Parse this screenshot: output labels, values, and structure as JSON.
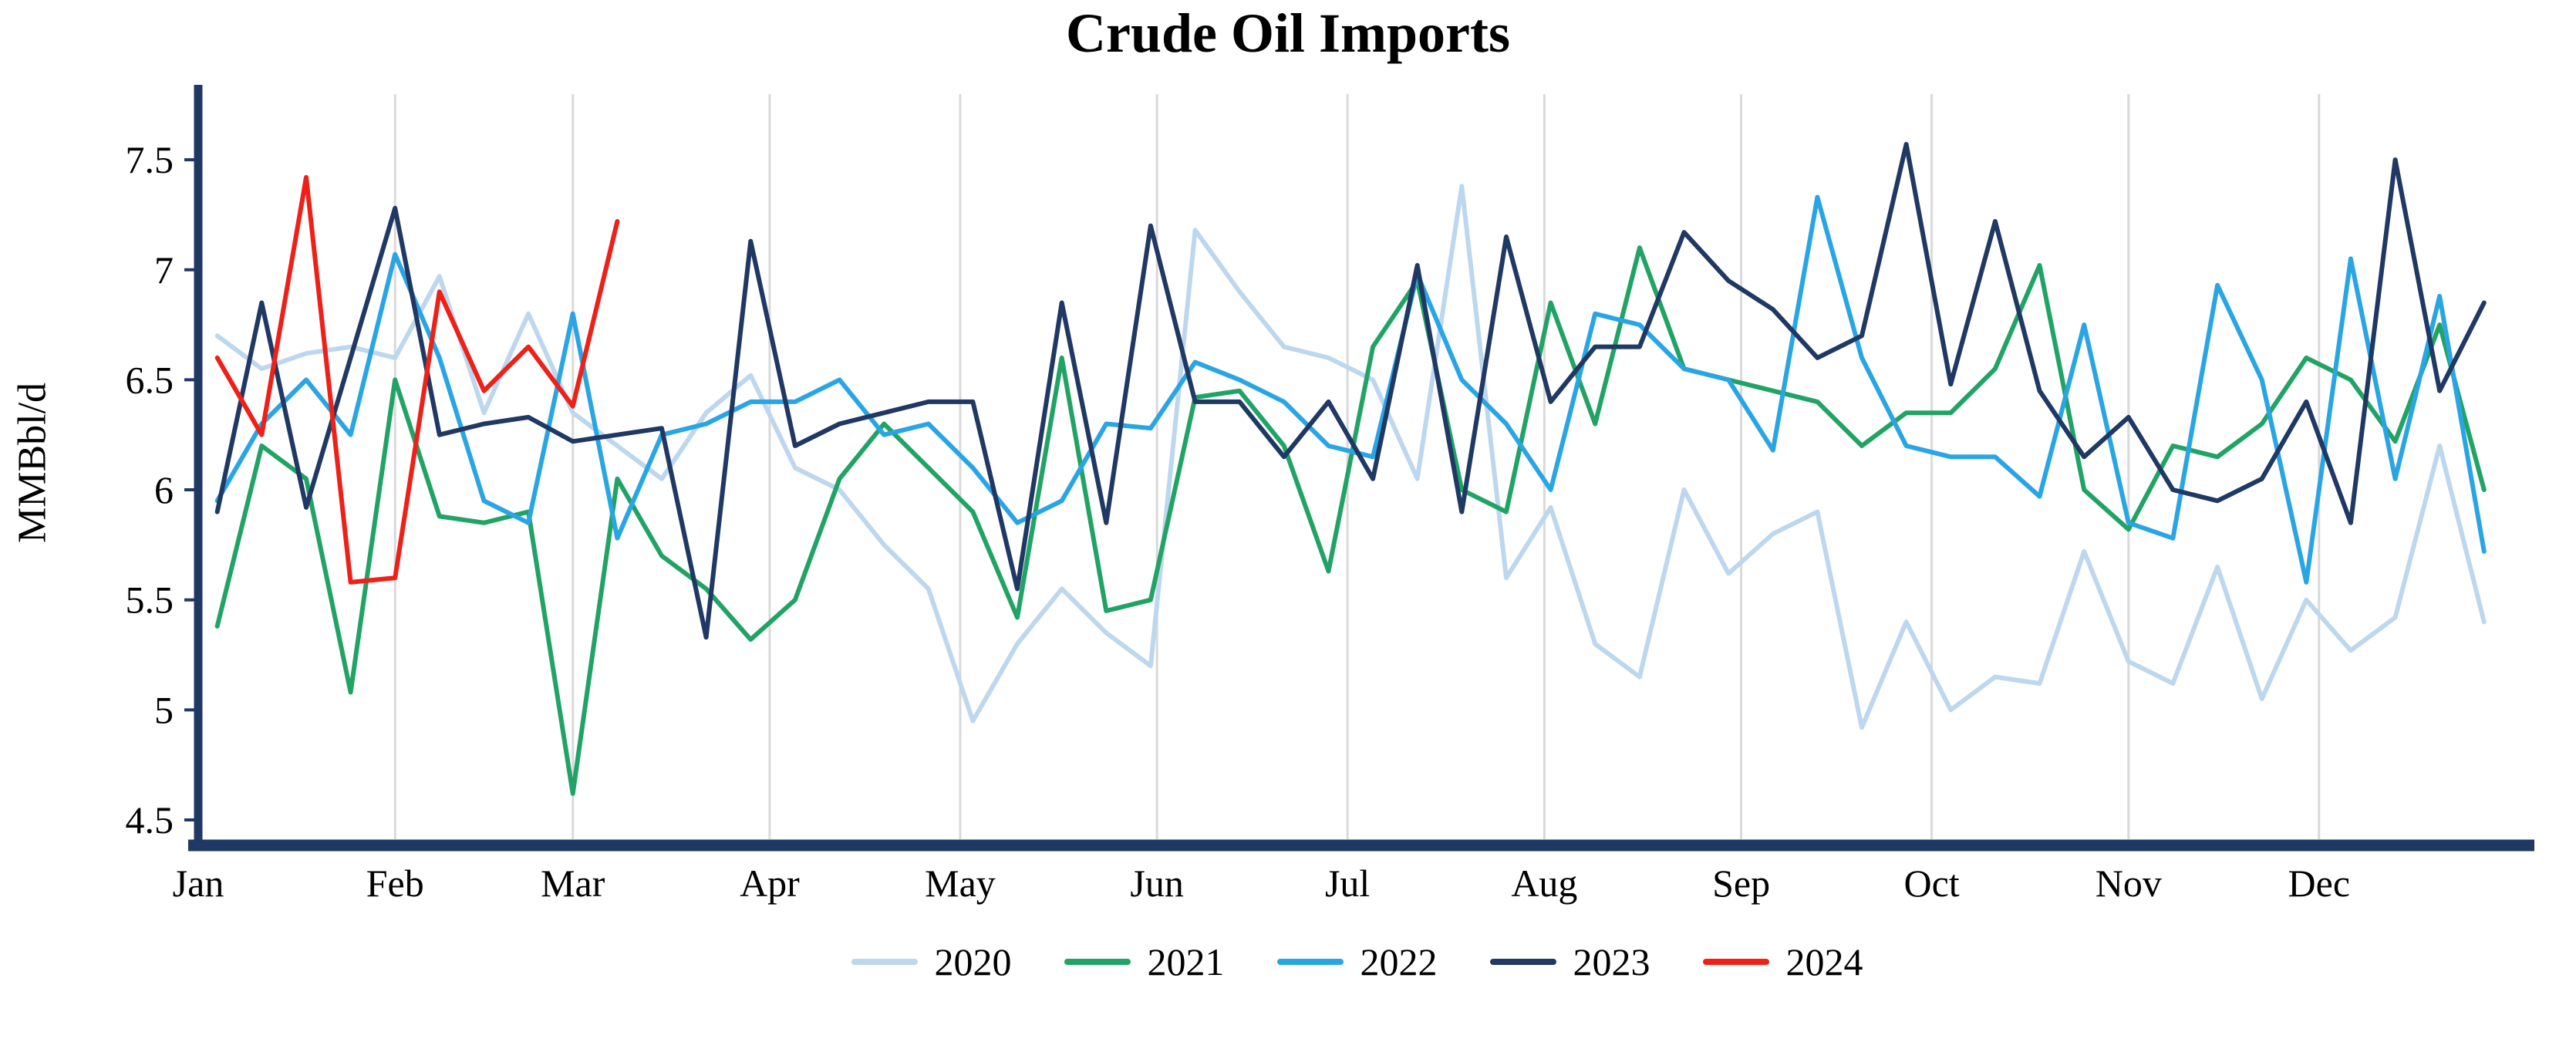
{
  "chart_data": {
    "type": "line",
    "title": "Crude Oil Imports",
    "ylabel": "MMBbl/d",
    "xlabel": "",
    "ylim": [
      4.5,
      7.5
    ],
    "y_ticks": [
      4.5,
      5,
      5.5,
      6,
      6.5,
      7,
      7.5
    ],
    "x_tick_labels": [
      "Jan",
      "Feb",
      "Mar",
      "Apr",
      "May",
      "Jun",
      "Jul",
      "Aug",
      "Sep",
      "Oct",
      "Nov",
      "Dec"
    ],
    "month_start_days": [
      0,
      31,
      59,
      90,
      120,
      151,
      181,
      212,
      243,
      273,
      304,
      334
    ],
    "x_axis_range_days": [
      0,
      365
    ],
    "x_resolution": "weekly",
    "grid": "vertical-month-gridlines-only",
    "grid_color": "#d9d9d9",
    "axis_color": "#1f3864",
    "legend_position": "bottom-center",
    "series": [
      {
        "name": "2020",
        "color": "#bdd7ee",
        "values": [
          6.7,
          6.55,
          6.62,
          6.65,
          6.6,
          6.97,
          6.35,
          6.8,
          6.35,
          6.2,
          6.05,
          6.35,
          6.52,
          6.1,
          6.0,
          5.75,
          5.55,
          4.95,
          5.3,
          5.55,
          5.35,
          5.2,
          7.18,
          6.9,
          6.65,
          6.6,
          6.5,
          6.05,
          7.38,
          5.6,
          5.92,
          5.3,
          5.15,
          6.0,
          5.62,
          5.8,
          5.9,
          4.92,
          5.4,
          5.0,
          5.15,
          5.12,
          5.72,
          5.22,
          5.12,
          5.65,
          5.05,
          5.5,
          5.27,
          5.42,
          6.2,
          5.4
        ]
      },
      {
        "name": "2021",
        "color": "#21a366",
        "values": [
          5.38,
          6.2,
          6.05,
          5.08,
          6.5,
          5.88,
          5.85,
          5.9,
          4.62,
          6.05,
          5.7,
          5.55,
          5.32,
          5.5,
          6.05,
          6.3,
          6.1,
          5.9,
          5.42,
          6.6,
          5.45,
          5.5,
          6.42,
          6.45,
          6.2,
          5.63,
          6.65,
          6.95,
          6.0,
          5.9,
          6.85,
          6.3,
          7.1,
          6.55,
          6.5,
          6.45,
          6.4,
          6.2,
          6.35,
          6.35,
          6.55,
          7.02,
          6.0,
          5.82,
          6.2,
          6.15,
          6.3,
          6.6,
          6.5,
          6.22,
          6.75,
          6.0
        ]
      },
      {
        "name": "2022",
        "color": "#2aa5e4",
        "values": [
          5.95,
          6.3,
          6.5,
          6.25,
          7.07,
          6.6,
          5.95,
          5.85,
          6.8,
          5.78,
          6.25,
          6.3,
          6.4,
          6.4,
          6.5,
          6.25,
          6.3,
          6.1,
          5.85,
          5.95,
          6.3,
          6.28,
          6.58,
          6.5,
          6.4,
          6.2,
          6.15,
          6.98,
          6.5,
          6.3,
          6.0,
          6.8,
          6.75,
          6.55,
          6.5,
          6.18,
          7.33,
          6.6,
          6.2,
          6.15,
          6.15,
          5.97,
          6.75,
          5.85,
          5.78,
          6.93,
          6.5,
          5.58,
          7.05,
          6.05,
          6.88,
          5.72
        ]
      },
      {
        "name": "2023",
        "color": "#1f3864",
        "values": [
          5.9,
          6.85,
          5.92,
          6.6,
          7.28,
          6.25,
          6.3,
          6.33,
          6.22,
          6.25,
          6.28,
          5.33,
          7.13,
          6.2,
          6.3,
          6.35,
          6.4,
          6.4,
          5.55,
          6.85,
          5.85,
          7.2,
          6.4,
          6.4,
          6.15,
          6.4,
          6.05,
          7.02,
          5.9,
          7.15,
          6.4,
          6.65,
          6.65,
          7.17,
          6.95,
          6.82,
          6.6,
          6.7,
          7.57,
          6.48,
          7.22,
          6.45,
          6.15,
          6.33,
          6.0,
          5.95,
          6.05,
          6.4,
          5.85,
          7.5,
          6.45,
          6.85
        ]
      },
      {
        "name": "2024",
        "color": "#ee2017",
        "values": [
          6.6,
          6.25,
          7.42,
          5.58,
          5.6,
          6.9,
          6.45,
          6.65,
          6.38,
          7.22
        ]
      }
    ]
  }
}
